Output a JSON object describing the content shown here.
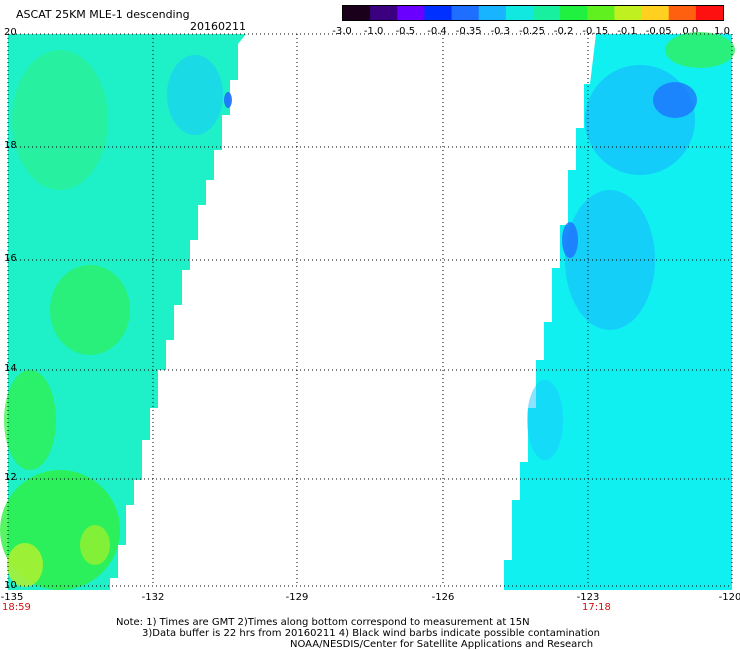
{
  "header": {
    "title": "ASCAT 25KM MLE-1 descending",
    "date": "20160211"
  },
  "colorbar": {
    "labels": [
      "-3.0",
      "-1.0",
      "-0.5",
      "-0.4",
      "-0.35",
      "-0.3",
      "-0.25",
      "-0.2",
      "-0.15",
      "-0.1",
      "-0.05",
      "0.0",
      "1.0"
    ],
    "colors": [
      "#1a001a",
      "#3a0080",
      "#6a00ff",
      "#0030ff",
      "#1e6eff",
      "#18b4ff",
      "#10e8e0",
      "#18f0a0",
      "#20f040",
      "#60f020",
      "#c0f020",
      "#ffd020",
      "#ff6010",
      "#ff1010"
    ]
  },
  "map": {
    "lat_labels": [
      "20",
      "18",
      "16",
      "14",
      "12",
      "10"
    ],
    "lon_labels": [
      "-135",
      "-132",
      "-129",
      "-126",
      "-123",
      "-120"
    ],
    "start_time": "18:59",
    "end_time": "17:18",
    "left_swath_color": "#1ef0c8",
    "right_swath_color": "#10f0f0"
  },
  "notes": {
    "line1": "Note: 1) Times are GMT 2)Times along bottom correspond to measurement at 15N",
    "line2": "3)Data buffer is 22 hrs from 20160211 4) Black wind barbs indicate possible contamination",
    "line3": "NOAA/NESDIS/Center for Satellite Applications and Research"
  }
}
